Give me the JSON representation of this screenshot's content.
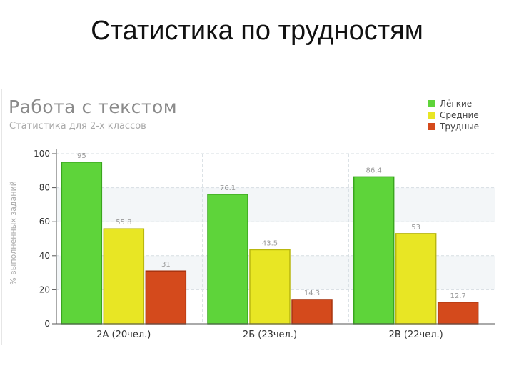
{
  "slide": {
    "title": "Статистика по трудностям"
  },
  "chart_data": {
    "type": "bar",
    "title": "Работа с текстом",
    "subtitle": "Статистика для 2-х классов",
    "ylabel": "% выполненных заданий",
    "xlabel": "",
    "ylim": [
      0,
      100
    ],
    "yticks": [
      0,
      20,
      40,
      60,
      80,
      100
    ],
    "grid": true,
    "legend_position": "top-right",
    "categories": [
      "2А (20чел.)",
      "2Б (23чел.)",
      "2В (22чел.)"
    ],
    "series": [
      {
        "name": "Лёгкие",
        "color": "#5ed43a",
        "border": "#3aa51e",
        "values": [
          95,
          76.1,
          86.4
        ],
        "labels": [
          "95",
          "76.1",
          "86.4"
        ]
      },
      {
        "name": "Средние",
        "color": "#e8e624",
        "border": "#b9b70f",
        "values": [
          55.8,
          43.5,
          53
        ],
        "labels": [
          "55.8",
          "43.5",
          "53"
        ]
      },
      {
        "name": "Трудные",
        "color": "#d44a1c",
        "border": "#a8340f",
        "values": [
          31,
          14.3,
          12.7
        ],
        "labels": [
          "31",
          "14.3",
          "12.7"
        ]
      }
    ]
  }
}
